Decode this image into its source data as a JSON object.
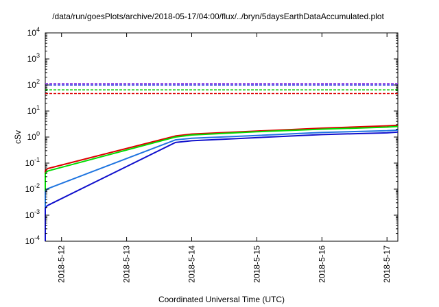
{
  "chart_data": {
    "type": "line",
    "title": "/data/run/goesPlots/archive/2018-05-17/04:00/flux/../bryn/5daysEarthDataAccumulated.plot",
    "xlabel": "Coordinated Universal Time (UTC)",
    "ylabel": "cSv",
    "y_scale": "log",
    "ylim": [
      0.0001,
      10000
    ],
    "xlim": [
      "2018-05-11T18:00",
      "2018-05-17T04:00"
    ],
    "grid": false,
    "legend": "none",
    "y_ticks": [
      {
        "value": 0.0001,
        "base": "10",
        "exp": "-4"
      },
      {
        "value": 0.001,
        "base": "10",
        "exp": "-3"
      },
      {
        "value": 0.01,
        "base": "10",
        "exp": "-2"
      },
      {
        "value": 0.1,
        "base": "10",
        "exp": "-1"
      },
      {
        "value": 1,
        "base": "10",
        "exp": "0"
      },
      {
        "value": 10,
        "base": "10",
        "exp": "1"
      },
      {
        "value": 100,
        "base": "10",
        "exp": "2"
      },
      {
        "value": 1000,
        "base": "10",
        "exp": "3"
      },
      {
        "value": 10000,
        "base": "10",
        "exp": "4"
      }
    ],
    "x_ticks": [
      {
        "value": "2018-05-12T00:00",
        "label": "2018-5-12"
      },
      {
        "value": "2018-05-13T00:00",
        "label": "2018-5-13"
      },
      {
        "value": "2018-05-14T00:00",
        "label": "2018-5-14"
      },
      {
        "value": "2018-05-15T00:00",
        "label": "2018-5-15"
      },
      {
        "value": "2018-05-16T00:00",
        "label": "2018-5-16"
      },
      {
        "value": "2018-05-17T00:00",
        "label": "2018-5-17"
      }
    ],
    "series": [
      {
        "color": "#dd0000",
        "style": "solid",
        "x": [
          "2018-05-11T18:00",
          "2018-05-11T18:00",
          "2018-05-11T18:30",
          "2018-05-11T19:00",
          "2018-05-13T18:00",
          "2018-05-14T00:00",
          "2018-05-15T00:00",
          "2018-05-16T00:00",
          "2018-05-17T00:00",
          "2018-05-17T04:00"
        ],
        "y": [
          0.0001,
          0.05,
          0.058,
          0.062,
          1.1,
          1.3,
          1.7,
          2.2,
          2.7,
          2.85
        ]
      },
      {
        "color": "#00dd00",
        "style": "solid",
        "x": [
          "2018-05-11T18:00",
          "2018-05-11T18:00",
          "2018-05-11T18:30",
          "2018-05-11T19:00",
          "2018-05-13T18:00",
          "2018-05-14T00:00",
          "2018-05-15T00:00",
          "2018-05-16T00:00",
          "2018-05-17T00:00",
          "2018-05-17T04:00"
        ],
        "y": [
          0.0001,
          0.04,
          0.046,
          0.05,
          1.0,
          1.2,
          1.6,
          2.0,
          2.4,
          2.55
        ]
      },
      {
        "color": "#1e74e0",
        "style": "solid",
        "x": [
          "2018-05-11T18:00",
          "2018-05-11T18:00",
          "2018-05-11T18:30",
          "2018-05-11T19:00",
          "2018-05-13T18:00",
          "2018-05-14T00:00",
          "2018-05-15T00:00",
          "2018-05-16T00:00",
          "2018-05-17T00:00",
          "2018-05-17T04:00"
        ],
        "y": [
          0.0001,
          0.008,
          0.0095,
          0.0105,
          0.78,
          0.9,
          1.15,
          1.5,
          1.75,
          1.85
        ]
      },
      {
        "color": "#1010cc",
        "style": "solid",
        "x": [
          "2018-05-11T18:00",
          "2018-05-11T18:00",
          "2018-05-11T18:30",
          "2018-05-11T19:00",
          "2018-05-13T18:00",
          "2018-05-14T00:00",
          "2018-05-15T00:00",
          "2018-05-16T00:00",
          "2018-05-17T00:00",
          "2018-05-17T04:00"
        ],
        "y": [
          0.0001,
          0.0018,
          0.0022,
          0.0024,
          0.62,
          0.72,
          0.95,
          1.25,
          1.45,
          1.55
        ]
      },
      {
        "color": "#8a2be2",
        "style": "dashed",
        "x": [
          "2018-05-11T18:00",
          "2018-05-17T04:00"
        ],
        "y": [
          115,
          115
        ]
      },
      {
        "color": "#1a1adb",
        "style": "dashed",
        "x": [
          "2018-05-11T18:00",
          "2018-05-17T04:00"
        ],
        "y": [
          100,
          100
        ]
      },
      {
        "color": "#00cc00",
        "style": "dashed",
        "x": [
          "2018-05-11T18:00",
          "2018-05-17T04:00"
        ],
        "y": [
          65,
          65
        ]
      },
      {
        "color": "#dd0000",
        "style": "dashed",
        "x": [
          "2018-05-11T18:00",
          "2018-05-17T04:00"
        ],
        "y": [
          47,
          47
        ]
      }
    ]
  }
}
